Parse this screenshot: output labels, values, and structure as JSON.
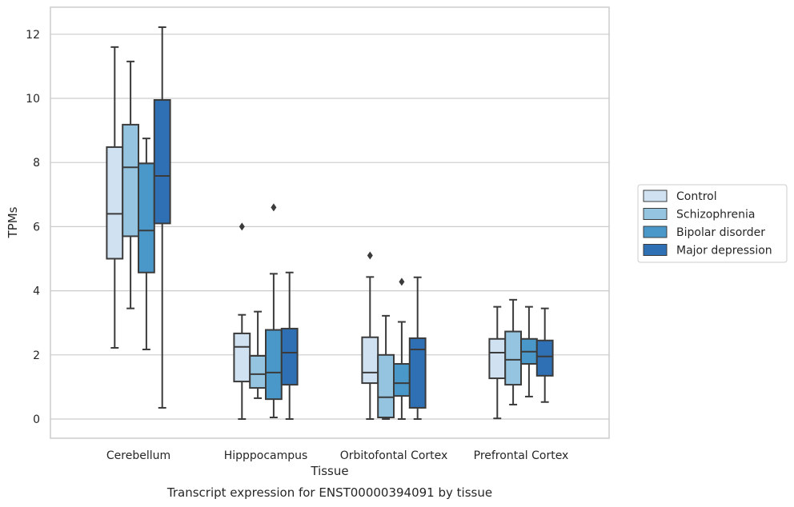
{
  "chart_data": {
    "type": "boxplot",
    "title": "",
    "caption": "Transcript expression for ENST00000394091 by tissue",
    "xlabel": "Tissue",
    "ylabel": "TPMs",
    "ylim": [
      -0.6,
      12.85
    ],
    "yticks": [
      0,
      2,
      4,
      6,
      8,
      10,
      12
    ],
    "grid": "horizontal",
    "legend_placement": "right",
    "categories": [
      "Cerebellum",
      "Hipppocampus",
      "Orbitofontal Cortex",
      "Prefrontal Cortex"
    ],
    "series": [
      {
        "name": "Control",
        "color": "#d0e1f2",
        "boxes": [
          {
            "whislo": 2.22,
            "q1": 5.0,
            "med": 6.4,
            "q3": 8.48,
            "whishi": 11.6,
            "fliers": []
          },
          {
            "whislo": 0.0,
            "q1": 1.17,
            "med": 2.25,
            "q3": 2.67,
            "whishi": 3.25,
            "fliers": [
              6.0
            ]
          },
          {
            "whislo": 0.0,
            "q1": 1.12,
            "med": 1.45,
            "q3": 2.55,
            "whishi": 4.43,
            "fliers": [
              5.1
            ]
          },
          {
            "whislo": 0.02,
            "q1": 1.27,
            "med": 2.07,
            "q3": 2.5,
            "whishi": 3.5,
            "fliers": []
          }
        ]
      },
      {
        "name": "Schizophrenia",
        "color": "#94c4df",
        "boxes": [
          {
            "whislo": 3.45,
            "q1": 5.7,
            "med": 7.85,
            "q3": 9.18,
            "whishi": 11.15,
            "fliers": []
          },
          {
            "whislo": 0.65,
            "q1": 0.97,
            "med": 1.4,
            "q3": 1.97,
            "whishi": 3.35,
            "fliers": []
          },
          {
            "whislo": 0.0,
            "q1": 0.05,
            "med": 0.68,
            "q3": 2.0,
            "whishi": 3.22,
            "fliers": []
          },
          {
            "whislo": 0.45,
            "q1": 1.07,
            "med": 1.85,
            "q3": 2.73,
            "whishi": 3.72,
            "fliers": []
          }
        ]
      },
      {
        "name": "Bipolar disorder",
        "color": "#4a98c9",
        "boxes": [
          {
            "whislo": 2.17,
            "q1": 4.57,
            "med": 5.88,
            "q3": 7.97,
            "whishi": 8.75,
            "fliers": []
          },
          {
            "whislo": 0.05,
            "q1": 0.62,
            "med": 1.45,
            "q3": 2.78,
            "whishi": 4.53,
            "fliers": [
              6.6
            ]
          },
          {
            "whislo": 0.0,
            "q1": 0.72,
            "med": 1.12,
            "q3": 1.72,
            "whishi": 3.03,
            "fliers": [
              4.28
            ]
          },
          {
            "whislo": 0.7,
            "q1": 1.72,
            "med": 2.1,
            "q3": 2.5,
            "whishi": 3.5,
            "fliers": []
          }
        ]
      },
      {
        "name": "Major depression",
        "color": "#2f6fb3",
        "boxes": [
          {
            "whislo": 0.35,
            "q1": 6.1,
            "med": 7.58,
            "q3": 9.95,
            "whishi": 12.22,
            "fliers": []
          },
          {
            "whislo": 0.0,
            "q1": 1.07,
            "med": 2.07,
            "q3": 2.82,
            "whishi": 4.57,
            "fliers": []
          },
          {
            "whislo": 0.0,
            "q1": 0.35,
            "med": 2.17,
            "q3": 2.52,
            "whishi": 4.42,
            "fliers": []
          },
          {
            "whislo": 0.53,
            "q1": 1.35,
            "med": 1.95,
            "q3": 2.45,
            "whishi": 3.45,
            "fliers": []
          }
        ]
      }
    ]
  }
}
